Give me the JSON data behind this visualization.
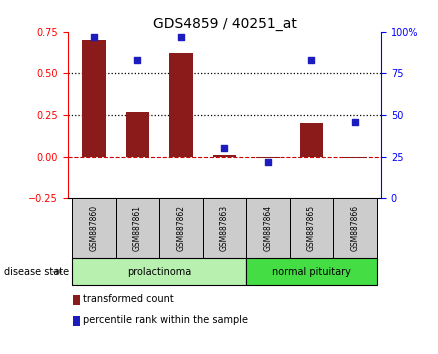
{
  "title": "GDS4859 / 40251_at",
  "samples": [
    "GSM887860",
    "GSM887861",
    "GSM887862",
    "GSM887863",
    "GSM887864",
    "GSM887865",
    "GSM887866"
  ],
  "transformed_count": [
    0.7,
    0.27,
    0.62,
    0.01,
    -0.01,
    0.2,
    -0.01
  ],
  "percentile_rank": [
    97,
    83,
    97,
    30,
    22,
    83,
    46
  ],
  "bar_color": "#8B1A1A",
  "dot_color": "#1C1CBF",
  "ylim_left": [
    -0.25,
    0.75
  ],
  "ylim_right": [
    0,
    100
  ],
  "yticks_left": [
    -0.25,
    0.0,
    0.25,
    0.5,
    0.75
  ],
  "yticks_right": [
    0,
    25,
    50,
    75,
    100
  ],
  "ytick_labels_right": [
    "0",
    "25",
    "50",
    "75",
    "100%"
  ],
  "hlines_dotted": [
    0.25,
    0.5
  ],
  "hline_dashed_color": "#CC0000",
  "groups": [
    {
      "label": "prolactinoma",
      "indices": [
        0,
        1,
        2,
        3
      ],
      "color": "#B8F0B0"
    },
    {
      "label": "normal pituitary",
      "indices": [
        4,
        5,
        6
      ],
      "color": "#44DD44"
    }
  ],
  "disease_state_label": "disease state",
  "legend_bar_label": "transformed count",
  "legend_dot_label": "percentile rank within the sample",
  "bar_width": 0.55,
  "background_color": "#ffffff",
  "sample_box_color": "#cccccc",
  "sample_box_edge_color": "#000000"
}
